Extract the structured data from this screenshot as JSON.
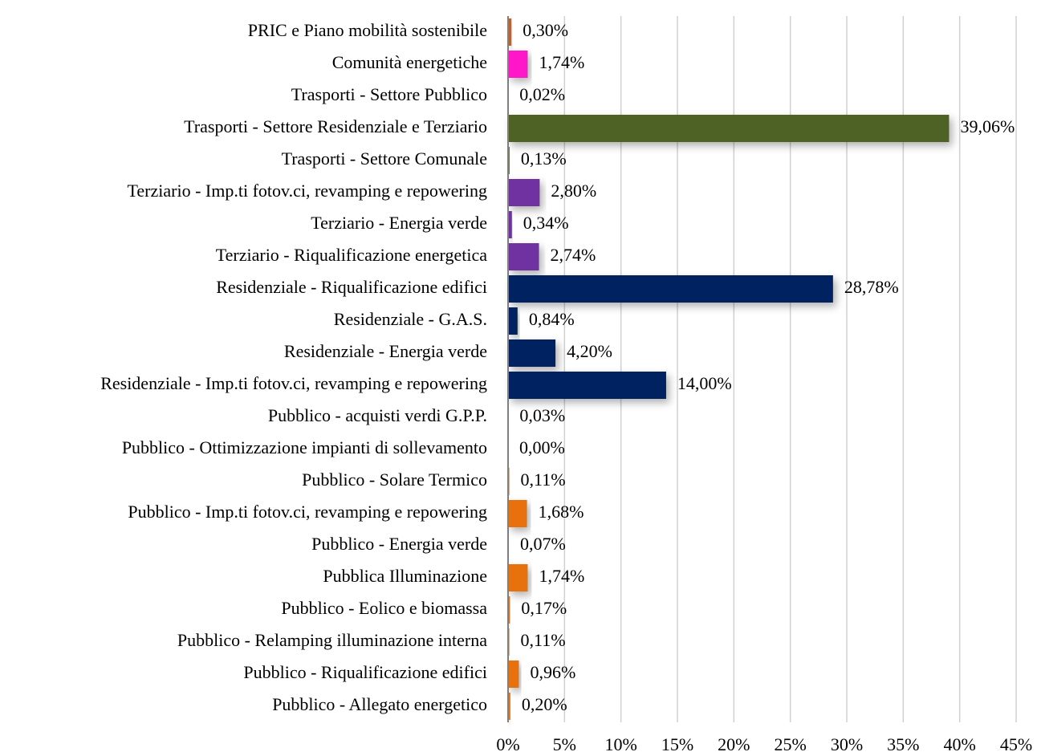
{
  "chart_data": {
    "type": "bar",
    "orientation": "horizontal",
    "categories": [
      "PRIC e Piano mobilità sostenibile",
      "Comunità energetiche",
      "Trasporti - Settore Pubblico",
      "Trasporti - Settore Residenziale e Terziario",
      "Trasporti - Settore Comunale",
      "Terziario - Imp.ti fotov.ci, revamping e repowering",
      "Terziario - Energia verde",
      "Terziario - Riqualificazione energetica",
      "Residenziale - Riqualificazione edifici",
      "Residenziale - G.A.S.",
      "Residenziale - Energia verde",
      "Residenziale - Imp.ti fotov.ci, revamping e repowering",
      "Pubblico - acquisti verdi G.P.P.",
      "Pubblico - Ottimizzazione impianti di sollevamento",
      "Pubblico - Solare Termico",
      "Pubblico - Imp.ti fotov.ci, revamping e repowering",
      "Pubblico - Energia verde",
      "Pubblica Illuminazione",
      "Pubblico - Eolico e biomassa",
      "Pubblico - Relamping illuminazione interna",
      "Pubblico - Riqualificazione edifici",
      "Pubblico - Allegato energetico"
    ],
    "values": [
      0.3,
      1.74,
      0.02,
      39.06,
      0.13,
      2.8,
      0.34,
      2.74,
      28.78,
      0.84,
      4.2,
      14.0,
      0.03,
      0.0,
      0.11,
      1.68,
      0.07,
      1.74,
      0.17,
      0.11,
      0.96,
      0.2
    ],
    "value_labels": [
      "0,30%",
      "1,74%",
      "0,02%",
      "39,06%",
      "0,13%",
      "2,80%",
      "0,34%",
      "2,74%",
      "28,78%",
      "0,84%",
      "4,20%",
      "14,00%",
      "0,03%",
      "0,00%",
      "0,11%",
      "1,68%",
      "0,07%",
      "1,74%",
      "0,17%",
      "0,11%",
      "0,96%",
      "0,20%"
    ],
    "colors": [
      "#c0622a",
      "#ff14c8",
      "#4f6228",
      "#4f6228",
      "#4f6228",
      "#7030a0",
      "#7030a0",
      "#7030a0",
      "#002060",
      "#002060",
      "#002060",
      "#002060",
      "#e8700e",
      "#e8700e",
      "#e8700e",
      "#e8700e",
      "#e8700e",
      "#e8700e",
      "#e8700e",
      "#e8700e",
      "#e8700e",
      "#e8700e"
    ],
    "xlim": [
      0,
      45
    ],
    "xticks": [
      {
        "value": 0,
        "label": "0%"
      },
      {
        "value": 5,
        "label": "5%"
      },
      {
        "value": 10,
        "label": "10%"
      },
      {
        "value": 15,
        "label": "15%"
      },
      {
        "value": 20,
        "label": "20%"
      },
      {
        "value": 25,
        "label": "25%"
      },
      {
        "value": 30,
        "label": "30%"
      },
      {
        "value": 35,
        "label": "35%"
      },
      {
        "value": 40,
        "label": "40%"
      },
      {
        "value": 45,
        "label": "45%"
      }
    ],
    "grid": true
  }
}
